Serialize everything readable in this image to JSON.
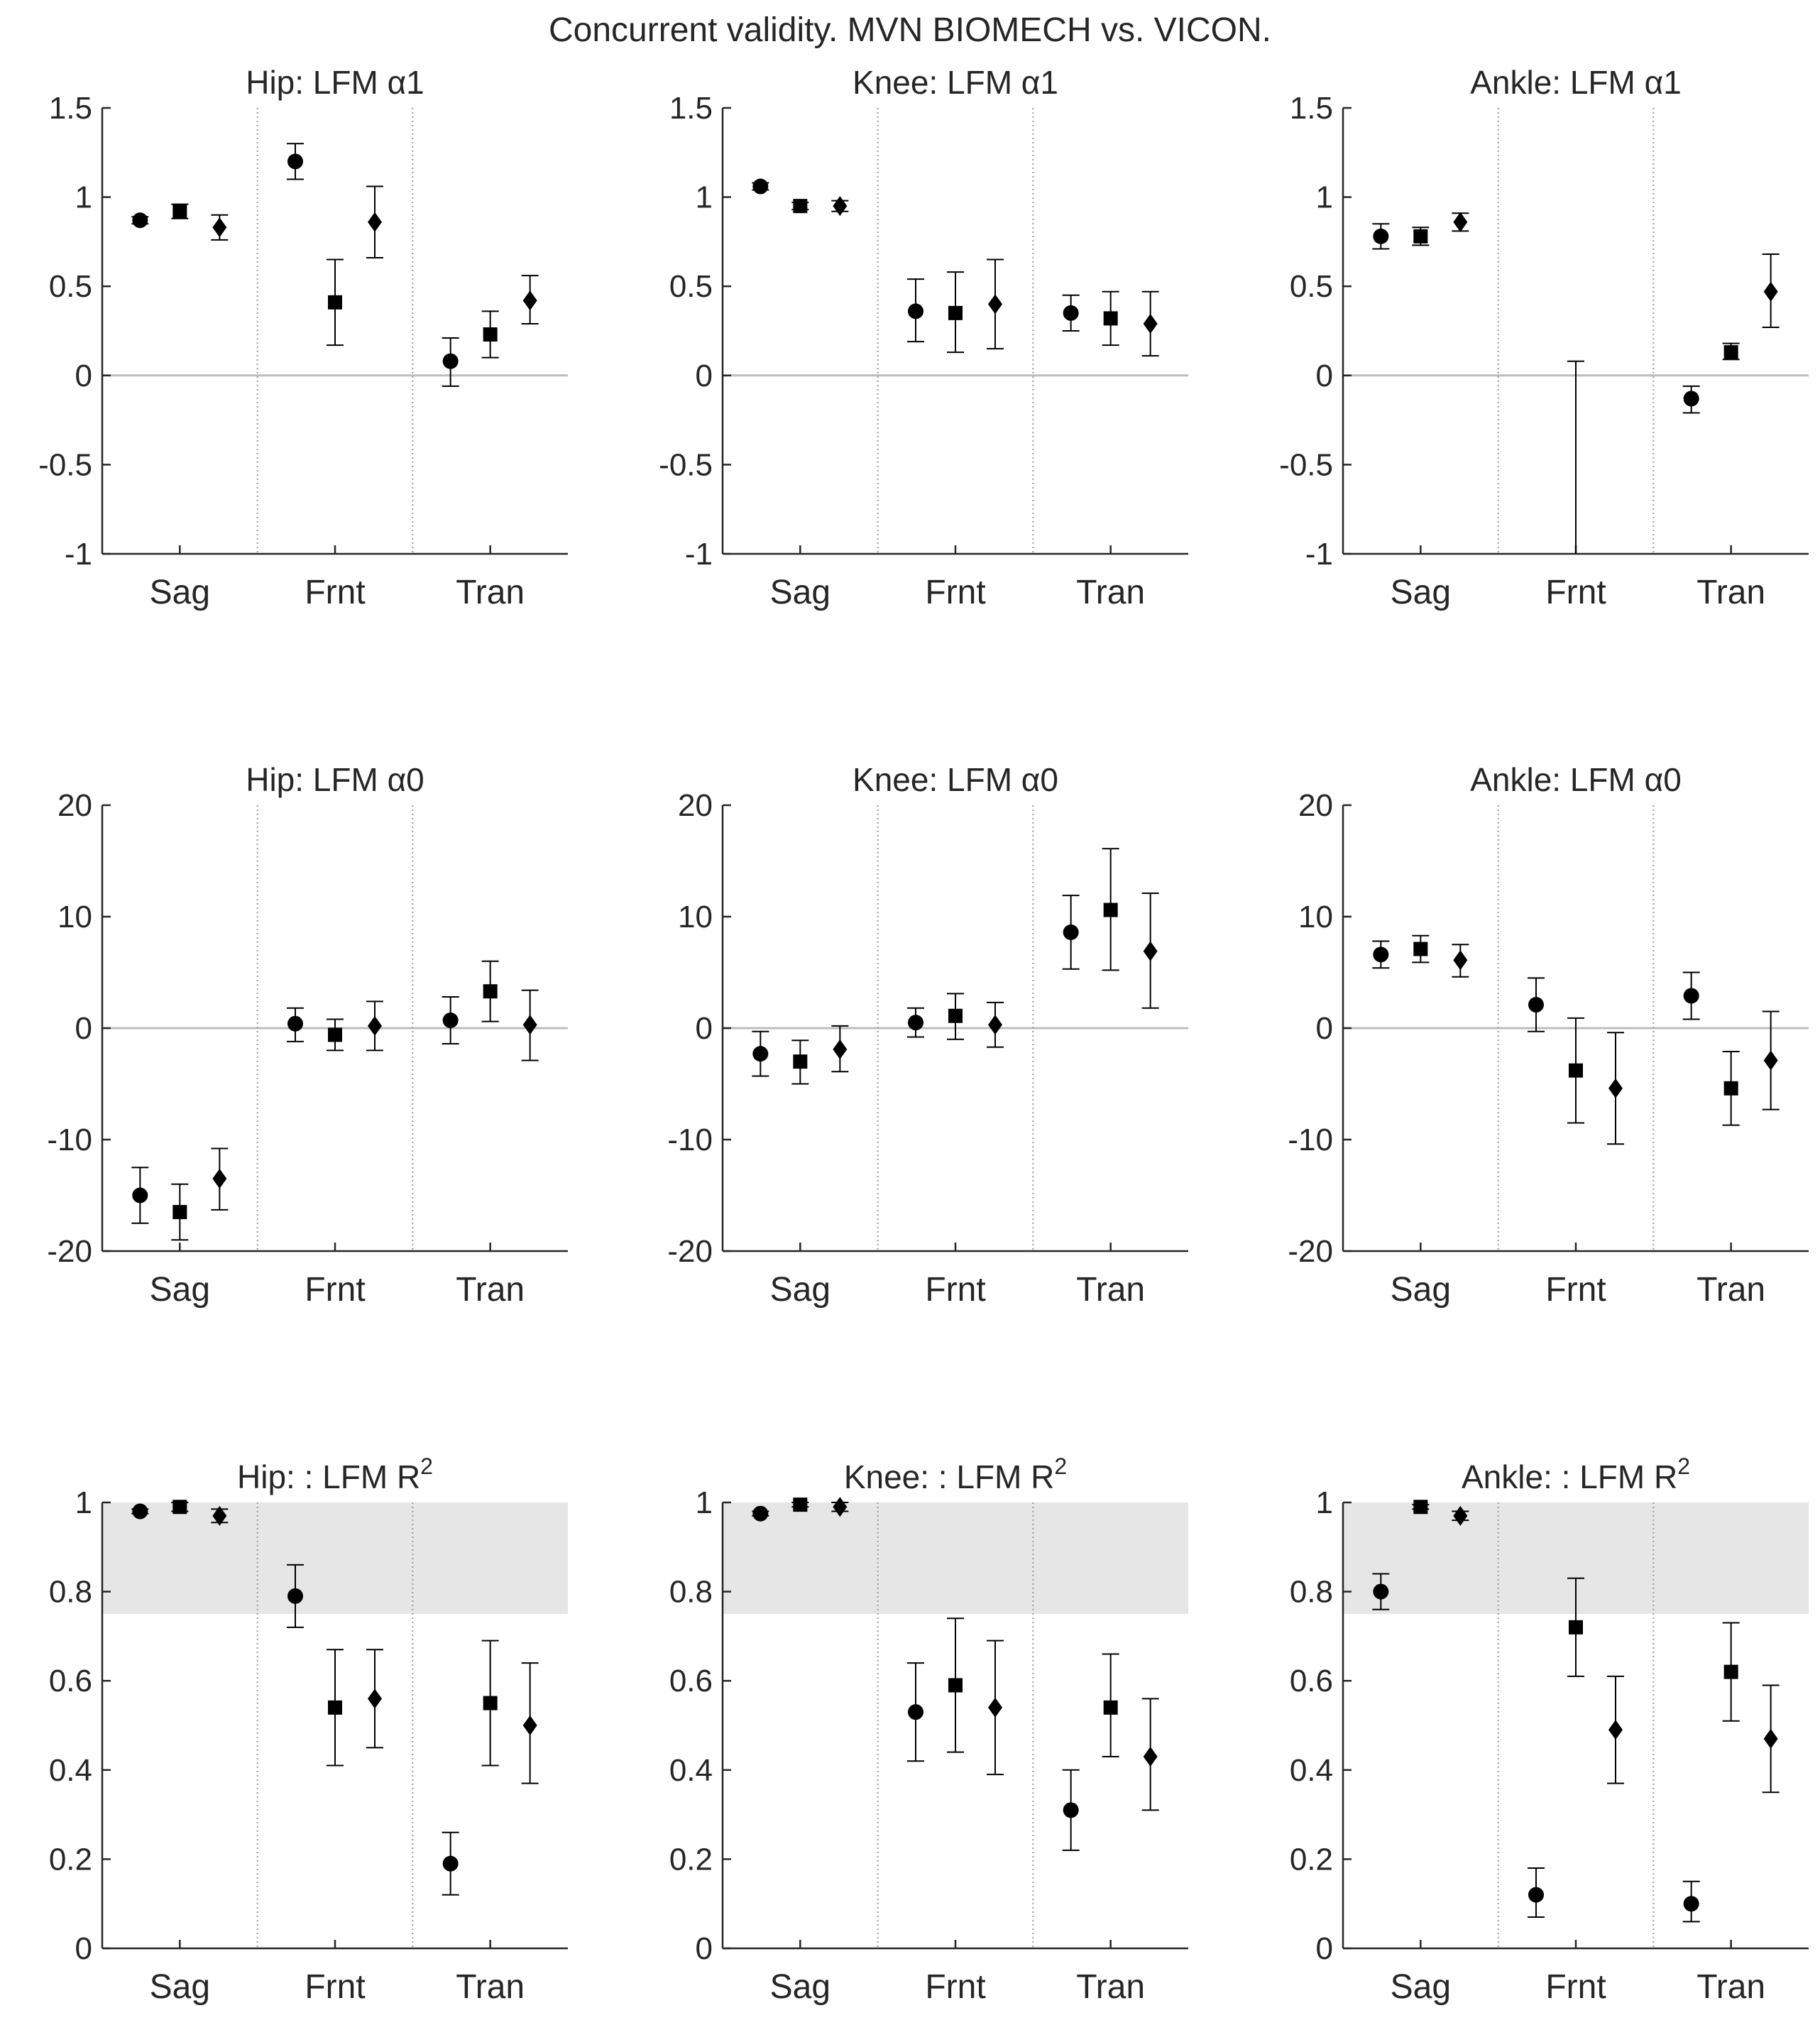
{
  "figure_title": "Concurrent validity. MVN BIOMECH vs. VICON.",
  "colors": {
    "axis": "#262626",
    "marker": "#000000",
    "zero_line": "#bdbdbd",
    "separator": "#9a9a9a",
    "band": "#e6e6e6"
  },
  "chart_data": [
    {
      "id": "hip-a1",
      "type": "scatter",
      "title": "Hip: LFM α1",
      "title_sup": "",
      "categories": [
        "Sag",
        "Frnt",
        "Tran"
      ],
      "ylim": [
        -1,
        1.5
      ],
      "yticks": [
        -1,
        -0.5,
        0,
        0.5,
        1,
        1.5
      ],
      "ytick_labels": [
        "-1",
        "-0.5",
        "0",
        "0.5",
        "1",
        "1.5"
      ],
      "zero_line": true,
      "band": null,
      "points": [
        {
          "category": "Sag",
          "marker": "circle",
          "value": 0.87,
          "lower": 0.85,
          "upper": 0.89
        },
        {
          "category": "Sag",
          "marker": "square",
          "value": 0.92,
          "lower": 0.88,
          "upper": 0.96
        },
        {
          "category": "Sag",
          "marker": "diamond",
          "value": 0.83,
          "lower": 0.76,
          "upper": 0.9
        },
        {
          "category": "Frnt",
          "marker": "circle",
          "value": 1.2,
          "lower": 1.1,
          "upper": 1.3
        },
        {
          "category": "Frnt",
          "marker": "square",
          "value": 0.41,
          "lower": 0.17,
          "upper": 0.65
        },
        {
          "category": "Frnt",
          "marker": "diamond",
          "value": 0.86,
          "lower": 0.66,
          "upper": 1.06
        },
        {
          "category": "Tran",
          "marker": "circle",
          "value": 0.08,
          "lower": -0.06,
          "upper": 0.21
        },
        {
          "category": "Tran",
          "marker": "square",
          "value": 0.23,
          "lower": 0.1,
          "upper": 0.36
        },
        {
          "category": "Tran",
          "marker": "diamond",
          "value": 0.42,
          "lower": 0.29,
          "upper": 0.56
        }
      ]
    },
    {
      "id": "knee-a1",
      "type": "scatter",
      "title": "Knee: LFM α1",
      "title_sup": "",
      "categories": [
        "Sag",
        "Frnt",
        "Tran"
      ],
      "ylim": [
        -1,
        1.5
      ],
      "yticks": [
        -1,
        -0.5,
        0,
        0.5,
        1,
        1.5
      ],
      "ytick_labels": [
        "-1",
        "-0.5",
        "0",
        "0.5",
        "1",
        "1.5"
      ],
      "zero_line": true,
      "band": null,
      "points": [
        {
          "category": "Sag",
          "marker": "circle",
          "value": 1.06,
          "lower": 1.04,
          "upper": 1.08
        },
        {
          "category": "Sag",
          "marker": "square",
          "value": 0.95,
          "lower": 0.93,
          "upper": 0.97
        },
        {
          "category": "Sag",
          "marker": "diamond",
          "value": 0.95,
          "lower": 0.92,
          "upper": 0.98
        },
        {
          "category": "Frnt",
          "marker": "circle",
          "value": 0.36,
          "lower": 0.19,
          "upper": 0.54
        },
        {
          "category": "Frnt",
          "marker": "square",
          "value": 0.35,
          "lower": 0.13,
          "upper": 0.58
        },
        {
          "category": "Frnt",
          "marker": "diamond",
          "value": 0.4,
          "lower": 0.15,
          "upper": 0.65
        },
        {
          "category": "Tran",
          "marker": "circle",
          "value": 0.35,
          "lower": 0.25,
          "upper": 0.45
        },
        {
          "category": "Tran",
          "marker": "square",
          "value": 0.32,
          "lower": 0.17,
          "upper": 0.47
        },
        {
          "category": "Tran",
          "marker": "diamond",
          "value": 0.29,
          "lower": 0.11,
          "upper": 0.47
        }
      ]
    },
    {
      "id": "ankle-a1",
      "type": "scatter",
      "title": "Ankle: LFM α1",
      "title_sup": "",
      "categories": [
        "Sag",
        "Frnt",
        "Tran"
      ],
      "ylim": [
        -1,
        1.5
      ],
      "yticks": [
        -1,
        -0.5,
        0,
        0.5,
        1,
        1.5
      ],
      "ytick_labels": [
        "-1",
        "-0.5",
        "0",
        "0.5",
        "1",
        "1.5"
      ],
      "zero_line": true,
      "band": null,
      "points": [
        {
          "category": "Sag",
          "marker": "circle",
          "value": 0.78,
          "lower": 0.71,
          "upper": 0.85
        },
        {
          "category": "Sag",
          "marker": "square",
          "value": 0.78,
          "lower": 0.73,
          "upper": 0.83
        },
        {
          "category": "Sag",
          "marker": "diamond",
          "value": 0.86,
          "lower": 0.81,
          "upper": 0.91
        },
        {
          "category": "Frnt",
          "marker": "none",
          "value": null,
          "lower": -1.0,
          "upper": 0.08
        },
        {
          "category": "Tran",
          "marker": "circle",
          "value": -0.13,
          "lower": -0.21,
          "upper": -0.06
        },
        {
          "category": "Tran",
          "marker": "square",
          "value": 0.13,
          "lower": 0.09,
          "upper": 0.18
        },
        {
          "category": "Tran",
          "marker": "diamond",
          "value": 0.47,
          "lower": 0.27,
          "upper": 0.68
        }
      ]
    },
    {
      "id": "hip-a0",
      "type": "scatter",
      "title": "Hip: LFM α0",
      "title_sup": "",
      "categories": [
        "Sag",
        "Frnt",
        "Tran"
      ],
      "ylim": [
        -20,
        20
      ],
      "yticks": [
        -20,
        -10,
        0,
        10,
        20
      ],
      "ytick_labels": [
        "-20",
        "-10",
        "0",
        "10",
        "20"
      ],
      "zero_line": true,
      "band": null,
      "points": [
        {
          "category": "Sag",
          "marker": "circle",
          "value": -15.0,
          "lower": -17.5,
          "upper": -12.5
        },
        {
          "category": "Sag",
          "marker": "square",
          "value": -16.5,
          "lower": -19.0,
          "upper": -14.0
        },
        {
          "category": "Sag",
          "marker": "diamond",
          "value": -13.5,
          "lower": -16.3,
          "upper": -10.8
        },
        {
          "category": "Frnt",
          "marker": "circle",
          "value": 0.4,
          "lower": -1.2,
          "upper": 1.8
        },
        {
          "category": "Frnt",
          "marker": "square",
          "value": -0.6,
          "lower": -2.0,
          "upper": 0.8
        },
        {
          "category": "Frnt",
          "marker": "diamond",
          "value": 0.2,
          "lower": -2.0,
          "upper": 2.4
        },
        {
          "category": "Tran",
          "marker": "circle",
          "value": 0.7,
          "lower": -1.4,
          "upper": 2.8
        },
        {
          "category": "Tran",
          "marker": "square",
          "value": 3.3,
          "lower": 0.6,
          "upper": 6.0
        },
        {
          "category": "Tran",
          "marker": "diamond",
          "value": 0.3,
          "lower": -2.9,
          "upper": 3.4
        }
      ]
    },
    {
      "id": "knee-a0",
      "type": "scatter",
      "title": "Knee: LFM α0",
      "title_sup": "",
      "categories": [
        "Sag",
        "Frnt",
        "Tran"
      ],
      "ylim": [
        -20,
        20
      ],
      "yticks": [
        -20,
        -10,
        0,
        10,
        20
      ],
      "ytick_labels": [
        "-20",
        "-10",
        "0",
        "10",
        "20"
      ],
      "zero_line": true,
      "band": null,
      "points": [
        {
          "category": "Sag",
          "marker": "circle",
          "value": -2.3,
          "lower": -4.3,
          "upper": -0.3
        },
        {
          "category": "Sag",
          "marker": "square",
          "value": -3.0,
          "lower": -5.0,
          "upper": -1.1
        },
        {
          "category": "Sag",
          "marker": "diamond",
          "value": -1.9,
          "lower": -3.9,
          "upper": 0.2
        },
        {
          "category": "Frnt",
          "marker": "circle",
          "value": 0.5,
          "lower": -0.8,
          "upper": 1.8
        },
        {
          "category": "Frnt",
          "marker": "square",
          "value": 1.1,
          "lower": -1.0,
          "upper": 3.1
        },
        {
          "category": "Frnt",
          "marker": "diamond",
          "value": 0.3,
          "lower": -1.7,
          "upper": 2.3
        },
        {
          "category": "Tran",
          "marker": "circle",
          "value": 8.6,
          "lower": 5.3,
          "upper": 11.9
        },
        {
          "category": "Tran",
          "marker": "square",
          "value": 10.6,
          "lower": 5.2,
          "upper": 16.1
        },
        {
          "category": "Tran",
          "marker": "diamond",
          "value": 6.9,
          "lower": 1.8,
          "upper": 12.1
        }
      ]
    },
    {
      "id": "ankle-a0",
      "type": "scatter",
      "title": "Ankle: LFM α0",
      "title_sup": "",
      "categories": [
        "Sag",
        "Frnt",
        "Tran"
      ],
      "ylim": [
        -20,
        20
      ],
      "yticks": [
        -20,
        -10,
        0,
        10,
        20
      ],
      "ytick_labels": [
        "-20",
        "-10",
        "0",
        "10",
        "20"
      ],
      "zero_line": true,
      "band": null,
      "points": [
        {
          "category": "Sag",
          "marker": "circle",
          "value": 6.6,
          "lower": 5.4,
          "upper": 7.8
        },
        {
          "category": "Sag",
          "marker": "square",
          "value": 7.1,
          "lower": 5.9,
          "upper": 8.3
        },
        {
          "category": "Sag",
          "marker": "diamond",
          "value": 6.1,
          "lower": 4.6,
          "upper": 7.5
        },
        {
          "category": "Frnt",
          "marker": "circle",
          "value": 2.1,
          "lower": -0.3,
          "upper": 4.5
        },
        {
          "category": "Frnt",
          "marker": "square",
          "value": -3.8,
          "lower": -8.5,
          "upper": 0.9
        },
        {
          "category": "Frnt",
          "marker": "diamond",
          "value": -5.4,
          "lower": -10.4,
          "upper": -0.4
        },
        {
          "category": "Tran",
          "marker": "circle",
          "value": 2.9,
          "lower": 0.8,
          "upper": 5.0
        },
        {
          "category": "Tran",
          "marker": "square",
          "value": -5.4,
          "lower": -8.7,
          "upper": -2.1
        },
        {
          "category": "Tran",
          "marker": "diamond",
          "value": -2.9,
          "lower": -7.3,
          "upper": 1.5
        }
      ]
    },
    {
      "id": "hip-r2",
      "type": "scatter",
      "title": "Hip: : LFM R",
      "title_sup": "2",
      "categories": [
        "Sag",
        "Frnt",
        "Tran"
      ],
      "ylim": [
        0,
        1
      ],
      "yticks": [
        0,
        0.2,
        0.4,
        0.6,
        0.8,
        1
      ],
      "ytick_labels": [
        "0",
        "0.2",
        "0.4",
        "0.6",
        "0.8",
        "1"
      ],
      "zero_line": false,
      "band": [
        0.75,
        1.0
      ],
      "points": [
        {
          "category": "Sag",
          "marker": "circle",
          "value": 0.98,
          "lower": 0.975,
          "upper": 0.985
        },
        {
          "category": "Sag",
          "marker": "square",
          "value": 0.99,
          "lower": 0.98,
          "upper": 1.0
        },
        {
          "category": "Sag",
          "marker": "diamond",
          "value": 0.97,
          "lower": 0.955,
          "upper": 0.985
        },
        {
          "category": "Frnt",
          "marker": "circle",
          "value": 0.79,
          "lower": 0.72,
          "upper": 0.86
        },
        {
          "category": "Frnt",
          "marker": "square",
          "value": 0.54,
          "lower": 0.41,
          "upper": 0.67
        },
        {
          "category": "Frnt",
          "marker": "diamond",
          "value": 0.56,
          "lower": 0.45,
          "upper": 0.67
        },
        {
          "category": "Tran",
          "marker": "circle",
          "value": 0.19,
          "lower": 0.12,
          "upper": 0.26
        },
        {
          "category": "Tran",
          "marker": "square",
          "value": 0.55,
          "lower": 0.41,
          "upper": 0.69
        },
        {
          "category": "Tran",
          "marker": "diamond",
          "value": 0.5,
          "lower": 0.37,
          "upper": 0.64
        }
      ]
    },
    {
      "id": "knee-r2",
      "type": "scatter",
      "title": "Knee: : LFM R",
      "title_sup": "2",
      "categories": [
        "Sag",
        "Frnt",
        "Tran"
      ],
      "ylim": [
        0,
        1
      ],
      "yticks": [
        0,
        0.2,
        0.4,
        0.6,
        0.8,
        1
      ],
      "ytick_labels": [
        "0",
        "0.2",
        "0.4",
        "0.6",
        "0.8",
        "1"
      ],
      "zero_line": false,
      "band": [
        0.75,
        1.0
      ],
      "points": [
        {
          "category": "Sag",
          "marker": "circle",
          "value": 0.975,
          "lower": 0.97,
          "upper": 0.98
        },
        {
          "category": "Sag",
          "marker": "square",
          "value": 0.995,
          "lower": 0.99,
          "upper": 1.0
        },
        {
          "category": "Sag",
          "marker": "diamond",
          "value": 0.99,
          "lower": 0.98,
          "upper": 1.0
        },
        {
          "category": "Frnt",
          "marker": "circle",
          "value": 0.53,
          "lower": 0.42,
          "upper": 0.64
        },
        {
          "category": "Frnt",
          "marker": "square",
          "value": 0.59,
          "lower": 0.44,
          "upper": 0.74
        },
        {
          "category": "Frnt",
          "marker": "diamond",
          "value": 0.54,
          "lower": 0.39,
          "upper": 0.69
        },
        {
          "category": "Tran",
          "marker": "circle",
          "value": 0.31,
          "lower": 0.22,
          "upper": 0.4
        },
        {
          "category": "Tran",
          "marker": "square",
          "value": 0.54,
          "lower": 0.43,
          "upper": 0.66
        },
        {
          "category": "Tran",
          "marker": "diamond",
          "value": 0.43,
          "lower": 0.31,
          "upper": 0.56
        }
      ]
    },
    {
      "id": "ankle-r2",
      "type": "scatter",
      "title": "Ankle: : LFM R",
      "title_sup": "2",
      "categories": [
        "Sag",
        "Frnt",
        "Tran"
      ],
      "ylim": [
        0,
        1
      ],
      "yticks": [
        0,
        0.2,
        0.4,
        0.6,
        0.8,
        1
      ],
      "ytick_labels": [
        "0",
        "0.2",
        "0.4",
        "0.6",
        "0.8",
        "1"
      ],
      "zero_line": false,
      "band": [
        0.75,
        1.0
      ],
      "points": [
        {
          "category": "Sag",
          "marker": "circle",
          "value": 0.8,
          "lower": 0.76,
          "upper": 0.84
        },
        {
          "category": "Sag",
          "marker": "square",
          "value": 0.99,
          "lower": 0.985,
          "upper": 0.995
        },
        {
          "category": "Sag",
          "marker": "diamond",
          "value": 0.97,
          "lower": 0.96,
          "upper": 0.98
        },
        {
          "category": "Frnt",
          "marker": "circle",
          "value": 0.12,
          "lower": 0.07,
          "upper": 0.18
        },
        {
          "category": "Frnt",
          "marker": "square",
          "value": 0.72,
          "lower": 0.61,
          "upper": 0.83
        },
        {
          "category": "Frnt",
          "marker": "diamond",
          "value": 0.49,
          "lower": 0.37,
          "upper": 0.61
        },
        {
          "category": "Tran",
          "marker": "circle",
          "value": 0.1,
          "lower": 0.06,
          "upper": 0.15
        },
        {
          "category": "Tran",
          "marker": "square",
          "value": 0.62,
          "lower": 0.51,
          "upper": 0.73
        },
        {
          "category": "Tran",
          "marker": "diamond",
          "value": 0.47,
          "lower": 0.35,
          "upper": 0.59
        }
      ]
    }
  ]
}
